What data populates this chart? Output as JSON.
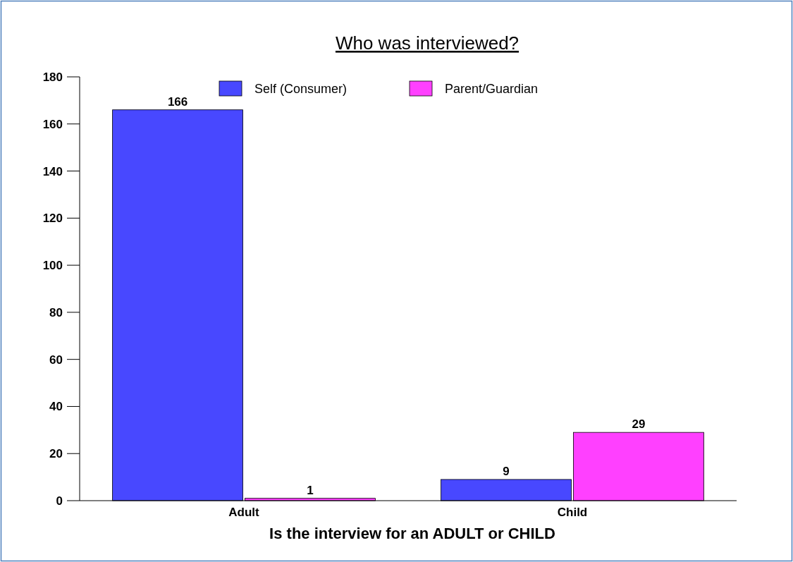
{
  "chart_data": {
    "type": "bar",
    "title": "Who was interviewed?",
    "xlabel": "Is the interview for an ADULT or CHILD",
    "categories": [
      "Adult",
      "Child"
    ],
    "series": [
      {
        "name": "Self (Consumer)",
        "color": "#4848ff",
        "values": [
          166,
          9
        ]
      },
      {
        "name": "Parent/Guardian",
        "color": "#ff40ff",
        "values": [
          1,
          29
        ]
      }
    ],
    "ylim": [
      0,
      180
    ],
    "yticks": [
      0,
      20,
      40,
      60,
      80,
      100,
      120,
      140,
      160,
      180
    ],
    "grid": false,
    "legend": "top",
    "data_labels": true
  }
}
